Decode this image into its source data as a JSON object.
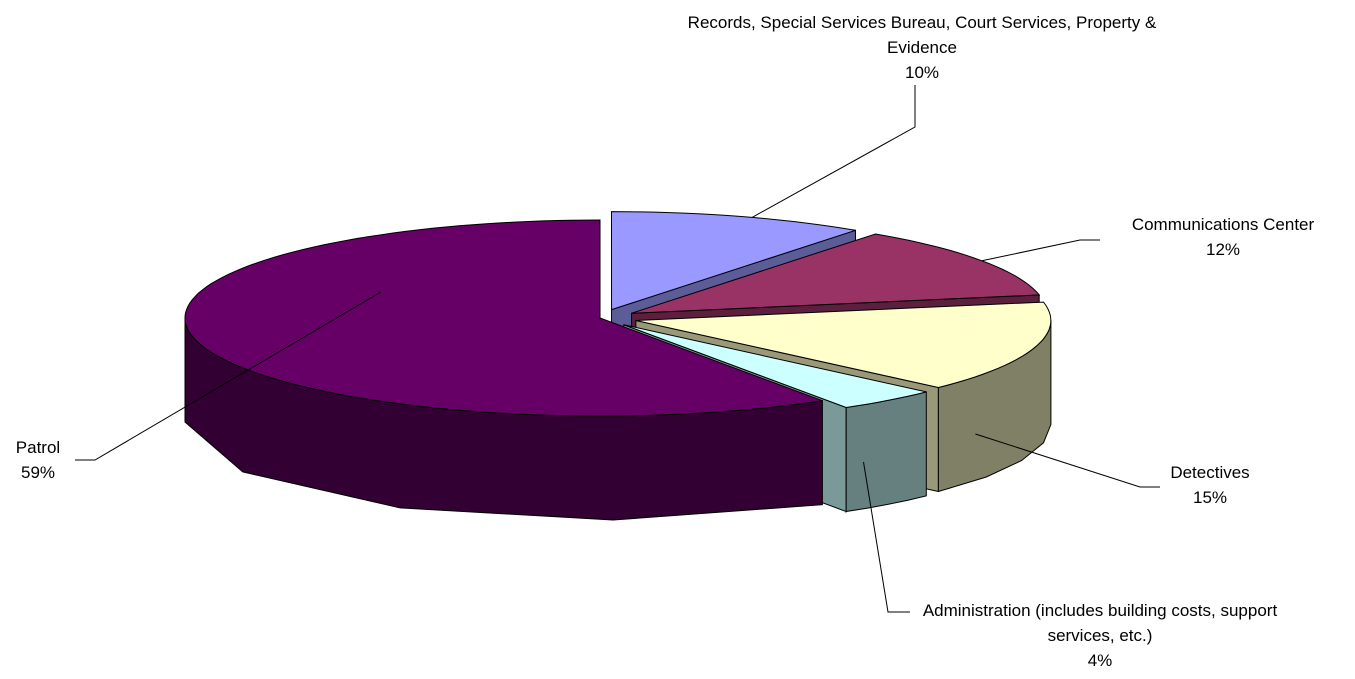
{
  "chart_data": {
    "type": "pie",
    "style": "3d-exploded",
    "title": "",
    "slices": [
      {
        "label": "Records, Special Services Bureau, Court Services, Property & Evidence",
        "value": 10,
        "value_label": "10%",
        "color": "#9999FF",
        "label_position": "top"
      },
      {
        "label": "Communications Center",
        "value": 12,
        "value_label": "12%",
        "color": "#993366",
        "label_position": "right"
      },
      {
        "label": "Detectives",
        "value": 15,
        "value_label": "15%",
        "color": "#FFFFCC",
        "label_position": "bottom-right"
      },
      {
        "label": "Administration (includes building costs, support services, etc.)",
        "value": 4,
        "value_label": "4%",
        "color": "#CCFFFF",
        "label_position": "bottom"
      },
      {
        "label": "Patrol",
        "value": 59,
        "value_label": "59%",
        "color": "#660066",
        "label_position": "left"
      }
    ],
    "legend": "none",
    "grid": false
  }
}
